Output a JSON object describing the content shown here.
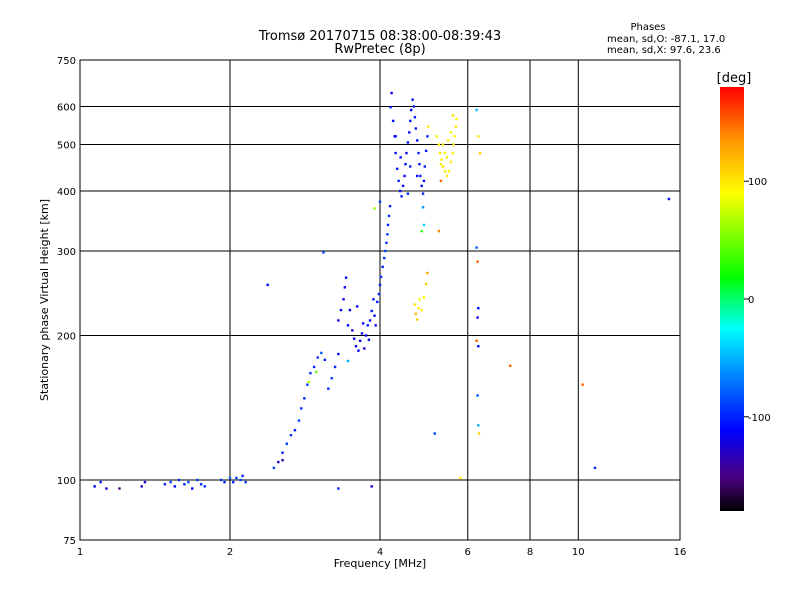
{
  "title": "Tromsø 20170715 08:38:00-08:39:43",
  "subtitle": "RwPretec (8p)",
  "phases": {
    "heading": "Phases",
    "line_o": "mean, sd,O: -87.1, 17.0",
    "line_x": "mean, sd,X:  97.6, 23.6"
  },
  "chart_data": {
    "type": "scatter",
    "xlabel": "Frequency [MHz]",
    "ylabel": "Stationary phase Virtual Height [km]",
    "x_scale": "log",
    "y_scale": "log",
    "xlim": [
      1,
      16
    ],
    "ylim": [
      75,
      750
    ],
    "x_ticks": [
      1,
      2,
      4,
      6,
      8,
      10,
      16
    ],
    "y_ticks": [
      75,
      100,
      200,
      300,
      400,
      500,
      600,
      750
    ],
    "x_grid": [
      2,
      4,
      6,
      8,
      10
    ],
    "y_grid": [
      100,
      200,
      300,
      400,
      500,
      600
    ],
    "colorbar": {
      "label": "[deg]",
      "min": -180,
      "max": 180,
      "ticks": [
        -100,
        0,
        100
      ]
    },
    "points": [
      [
        1.07,
        97,
        -110
      ],
      [
        1.1,
        99,
        -100
      ],
      [
        1.13,
        96,
        -120
      ],
      [
        1.33,
        97,
        -130
      ],
      [
        1.35,
        99,
        -120
      ],
      [
        1.48,
        98,
        -100
      ],
      [
        1.52,
        99,
        -90
      ],
      [
        1.55,
        97,
        -110
      ],
      [
        1.58,
        100,
        -95
      ],
      [
        1.62,
        98,
        -100
      ],
      [
        1.65,
        99,
        -85
      ],
      [
        1.68,
        96,
        -110
      ],
      [
        1.72,
        100,
        -90
      ],
      [
        1.75,
        98,
        -100
      ],
      [
        1.78,
        97,
        -95
      ],
      [
        1.92,
        100,
        -90
      ],
      [
        1.95,
        99,
        -100
      ],
      [
        2.0,
        101,
        -80
      ],
      [
        2.03,
        99,
        -100
      ],
      [
        2.06,
        101,
        -90
      ],
      [
        2.1,
        100,
        -85
      ],
      [
        2.12,
        102,
        -100
      ],
      [
        2.15,
        99,
        -95
      ],
      [
        2.38,
        255,
        -110
      ],
      [
        2.45,
        106,
        -90
      ],
      [
        2.5,
        109,
        -130
      ],
      [
        2.55,
        114,
        -100
      ],
      [
        2.6,
        119,
        -90
      ],
      [
        2.65,
        124,
        -95
      ],
      [
        2.7,
        127,
        -100
      ],
      [
        2.75,
        133,
        -90
      ],
      [
        2.78,
        141,
        -95
      ],
      [
        2.82,
        148,
        -100
      ],
      [
        2.86,
        158,
        -90
      ],
      [
        2.9,
        167,
        -95
      ],
      [
        2.95,
        172,
        -100
      ],
      [
        3.0,
        180,
        -95
      ],
      [
        3.05,
        184,
        -80
      ],
      [
        3.1,
        178,
        -100
      ],
      [
        2.88,
        160,
        70
      ],
      [
        2.98,
        168,
        50
      ],
      [
        3.08,
        298,
        -90
      ],
      [
        3.15,
        155,
        -100
      ],
      [
        3.2,
        163,
        -90
      ],
      [
        3.25,
        172,
        -100
      ],
      [
        3.3,
        183,
        -110
      ],
      [
        3.3,
        215,
        -120
      ],
      [
        3.34,
        226,
        -110
      ],
      [
        3.38,
        238,
        -120
      ],
      [
        3.4,
        252,
        -115
      ],
      [
        3.42,
        264,
        -110
      ],
      [
        3.45,
        210,
        -110
      ],
      [
        3.48,
        226,
        -115
      ],
      [
        3.52,
        205,
        -120
      ],
      [
        3.55,
        197,
        -115
      ],
      [
        3.58,
        190,
        -120
      ],
      [
        3.6,
        230,
        -110
      ],
      [
        3.62,
        186,
        -115
      ],
      [
        3.65,
        195,
        -120
      ],
      [
        3.68,
        202,
        -110
      ],
      [
        3.7,
        212,
        -115
      ],
      [
        3.72,
        188,
        -120
      ],
      [
        3.75,
        200,
        -110
      ],
      [
        3.78,
        210,
        -105
      ],
      [
        3.8,
        196,
        -115
      ],
      [
        3.82,
        215,
        -110
      ],
      [
        3.85,
        225,
        -105
      ],
      [
        3.88,
        238,
        -100
      ],
      [
        3.9,
        220,
        -110
      ],
      [
        3.92,
        210,
        -115
      ],
      [
        3.95,
        235,
        -105
      ],
      [
        3.98,
        244,
        -100
      ],
      [
        4.0,
        255,
        -100
      ],
      [
        4.02,
        265,
        -95
      ],
      [
        4.05,
        278,
        -100
      ],
      [
        4.08,
        290,
        -95
      ],
      [
        4.1,
        300,
        -90
      ],
      [
        4.12,
        312,
        -95
      ],
      [
        4.14,
        325,
        -90
      ],
      [
        4.15,
        340,
        -100
      ],
      [
        4.17,
        355,
        -95
      ],
      [
        4.19,
        372,
        -100
      ],
      [
        3.9,
        368,
        60
      ],
      [
        4.0,
        380,
        -90
      ],
      [
        3.45,
        177,
        -50
      ],
      [
        3.3,
        96,
        -100
      ],
      [
        3.85,
        97,
        -120
      ],
      [
        4.2,
        598,
        -110
      ],
      [
        4.22,
        640,
        -120
      ],
      [
        4.25,
        560,
        -110
      ],
      [
        4.28,
        520,
        -115
      ],
      [
        4.3,
        480,
        -110
      ],
      [
        4.33,
        445,
        -105
      ],
      [
        4.36,
        420,
        -100
      ],
      [
        4.39,
        400,
        -105
      ],
      [
        4.42,
        390,
        -100
      ],
      [
        4.45,
        410,
        -105
      ],
      [
        4.48,
        430,
        -110
      ],
      [
        4.5,
        455,
        -105
      ],
      [
        4.52,
        480,
        -110
      ],
      [
        4.55,
        505,
        -105
      ],
      [
        4.58,
        530,
        -110
      ],
      [
        4.6,
        560,
        -105
      ],
      [
        4.62,
        590,
        -110
      ],
      [
        4.65,
        620,
        -105
      ],
      [
        4.68,
        600,
        -100
      ],
      [
        4.7,
        570,
        -105
      ],
      [
        4.72,
        540,
        -100
      ],
      [
        4.75,
        510,
        -105
      ],
      [
        4.78,
        480,
        -100
      ],
      [
        4.8,
        455,
        -105
      ],
      [
        4.82,
        430,
        -100
      ],
      [
        4.85,
        410,
        -105
      ],
      [
        4.88,
        395,
        -100
      ],
      [
        4.9,
        420,
        -105
      ],
      [
        4.92,
        450,
        -100
      ],
      [
        4.95,
        485,
        -105
      ],
      [
        4.98,
        520,
        -100
      ],
      [
        4.3,
        520,
        -110
      ],
      [
        4.4,
        470,
        -105
      ],
      [
        4.6,
        450,
        -100
      ],
      [
        4.75,
        430,
        -110
      ],
      [
        4.55,
        395,
        -100
      ],
      [
        4.88,
        370,
        -60
      ],
      [
        4.9,
        340,
        -40
      ],
      [
        4.85,
        330,
        30
      ],
      [
        4.7,
        232,
        100
      ],
      [
        4.72,
        222,
        120
      ],
      [
        4.75,
        216,
        110
      ],
      [
        4.78,
        228,
        95
      ],
      [
        4.8,
        238,
        90
      ],
      [
        4.85,
        226,
        100
      ],
      [
        4.9,
        240,
        95
      ],
      [
        4.95,
        256,
        110
      ],
      [
        4.98,
        270,
        130
      ],
      [
        5.25,
        330,
        140
      ],
      [
        5.3,
        420,
        150
      ],
      [
        5.0,
        545,
        100
      ],
      [
        5.2,
        520,
        95
      ],
      [
        5.25,
        500,
        90
      ],
      [
        5.28,
        480,
        100
      ],
      [
        5.32,
        465,
        95
      ],
      [
        5.35,
        450,
        100
      ],
      [
        5.4,
        440,
        95
      ],
      [
        5.45,
        430,
        100
      ],
      [
        5.5,
        440,
        95
      ],
      [
        5.55,
        460,
        100
      ],
      [
        5.6,
        480,
        95
      ],
      [
        5.62,
        500,
        100
      ],
      [
        5.65,
        520,
        95
      ],
      [
        5.68,
        545,
        100
      ],
      [
        5.7,
        565,
        95
      ],
      [
        5.4,
        480,
        90
      ],
      [
        5.48,
        510,
        100
      ],
      [
        5.55,
        530,
        95
      ],
      [
        5.3,
        455,
        100
      ],
      [
        5.6,
        575,
        105
      ],
      [
        5.35,
        500,
        95
      ],
      [
        5.45,
        470,
        100
      ],
      [
        6.25,
        590,
        -50
      ],
      [
        6.3,
        520,
        100
      ],
      [
        6.35,
        480,
        110
      ],
      [
        6.25,
        305,
        -80
      ],
      [
        6.28,
        285,
        150
      ],
      [
        6.3,
        228,
        -110
      ],
      [
        6.28,
        218,
        -120
      ],
      [
        6.25,
        195,
        150
      ],
      [
        6.3,
        190,
        -110
      ],
      [
        6.28,
        150,
        -80
      ],
      [
        6.3,
        130,
        -50
      ],
      [
        6.32,
        125,
        110
      ],
      [
        5.15,
        125,
        -90
      ],
      [
        5.8,
        101,
        95
      ],
      [
        7.3,
        173,
        150
      ],
      [
        10.2,
        158,
        150
      ],
      [
        10.8,
        106,
        -100
      ],
      [
        15.2,
        385,
        -110
      ],
      [
        2.55,
        110,
        -140
      ],
      [
        1.2,
        96,
        -150
      ]
    ]
  }
}
